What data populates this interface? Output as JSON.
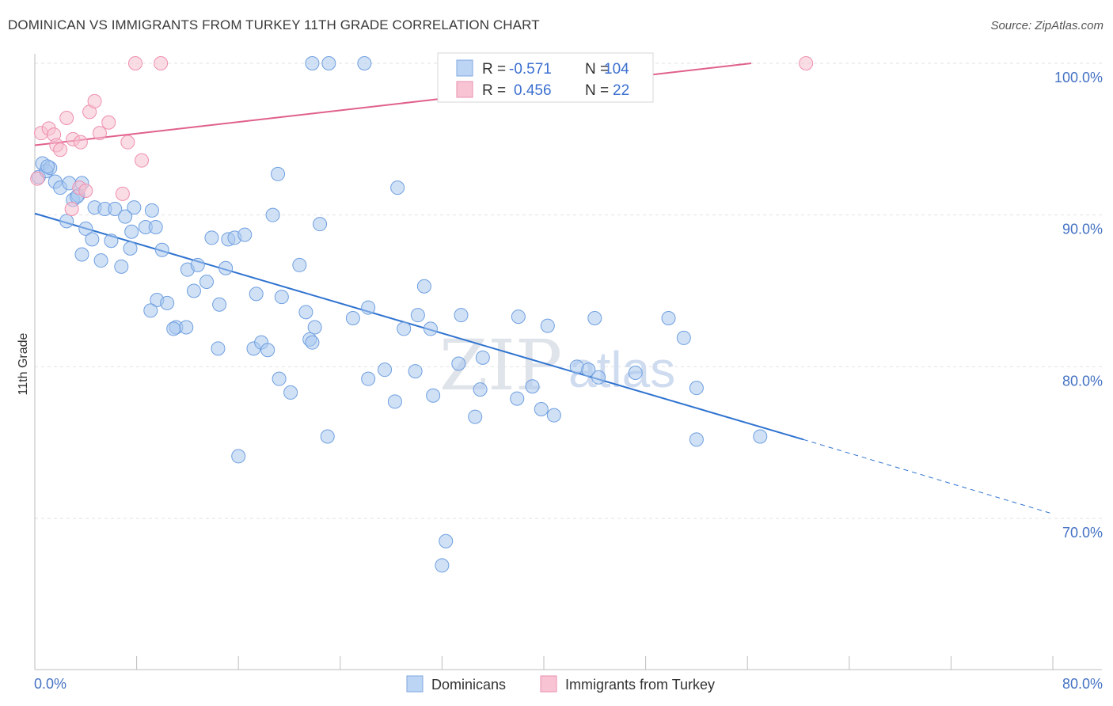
{
  "title": "DOMINICAN VS IMMIGRANTS FROM TURKEY 11TH GRADE CORRELATION CHART",
  "source": "Source: ZipAtlas.com",
  "watermark": {
    "zip": "ZIP",
    "atlas": "atlas"
  },
  "legend_box": {
    "rows": [
      {
        "r_label": "R =",
        "r_value": "-0.571",
        "n_label": "N =",
        "n_value": "104",
        "color": "#9ec3f0"
      },
      {
        "r_label": "R =",
        "r_value": "0.456",
        "n_label": "N =",
        "n_value": "22",
        "color": "#f4a9c0"
      }
    ]
  },
  "bottom_legend": [
    {
      "label": "Dominicans",
      "color": "#9ec3f0"
    },
    {
      "label": "Immigrants from Turkey",
      "color": "#f4a9c0"
    }
  ],
  "chart_data": {
    "type": "scatter",
    "title": "DOMINICAN VS IMMIGRANTS FROM TURKEY 11TH GRADE CORRELATION CHART",
    "xlabel": "",
    "ylabel": "11th Grade",
    "xlim": [
      0,
      80
    ],
    "ylim": [
      60,
      100
    ],
    "x_tick_labels": [
      "0.0%",
      "80.0%"
    ],
    "y_ticks": [
      70,
      80,
      90,
      100
    ],
    "y_tick_labels": [
      "70.0%",
      "80.0%",
      "90.0%",
      "100.0%"
    ],
    "grid": true,
    "colors": {
      "dominicans": "#6f9fe0",
      "dominicans_fill": "#a9c8ef",
      "turkey": "#ef8fae",
      "turkey_fill": "#f6bfd0",
      "dom_line": "#2f73d0",
      "tur_line": "#e0608c"
    },
    "series": [
      {
        "name": "Dominicans",
        "points": [
          [
            0.3,
            92.5
          ],
          [
            0.6,
            93.4
          ],
          [
            0.9,
            92.9
          ],
          [
            1.2,
            93.1
          ],
          [
            1.6,
            92.2
          ],
          [
            2.0,
            91.8
          ],
          [
            2.7,
            92.1
          ],
          [
            3.0,
            91.0
          ],
          [
            3.4,
            91.3
          ],
          [
            3.7,
            92.1
          ],
          [
            2.5,
            89.6
          ],
          [
            4.7,
            90.5
          ],
          [
            5.5,
            90.4
          ],
          [
            6.3,
            90.4
          ],
          [
            7.1,
            89.9
          ],
          [
            7.8,
            90.5
          ],
          [
            9.2,
            90.3
          ],
          [
            4.0,
            89.1
          ],
          [
            4.5,
            88.4
          ],
          [
            6.0,
            88.3
          ],
          [
            7.6,
            88.9
          ],
          [
            8.7,
            89.2
          ],
          [
            9.5,
            89.2
          ],
          [
            3.7,
            87.4
          ],
          [
            5.2,
            87.0
          ],
          [
            7.5,
            87.8
          ],
          [
            10.0,
            87.7
          ],
          [
            6.8,
            86.6
          ],
          [
            12.0,
            86.4
          ],
          [
            12.8,
            86.7
          ],
          [
            13.9,
            88.5
          ],
          [
            15.2,
            88.4
          ],
          [
            15.7,
            88.5
          ],
          [
            16.5,
            88.7
          ],
          [
            18.7,
            90.0
          ],
          [
            20.8,
            86.7
          ],
          [
            22.4,
            89.4
          ],
          [
            13.5,
            85.6
          ],
          [
            15.0,
            86.5
          ],
          [
            17.4,
            84.8
          ],
          [
            12.5,
            85.0
          ],
          [
            9.6,
            84.4
          ],
          [
            10.4,
            84.2
          ],
          [
            9.1,
            83.7
          ],
          [
            14.5,
            84.1
          ],
          [
            19.4,
            84.6
          ],
          [
            21.3,
            83.6
          ],
          [
            19.1,
            92.7
          ],
          [
            25.0,
            83.2
          ],
          [
            26.2,
            83.9
          ],
          [
            11.1,
            82.6
          ],
          [
            11.9,
            82.6
          ],
          [
            10.9,
            82.5
          ],
          [
            22.0,
            82.6
          ],
          [
            29.0,
            82.5
          ],
          [
            30.6,
            85.3
          ],
          [
            30.1,
            83.4
          ],
          [
            31.1,
            82.5
          ],
          [
            33.5,
            83.4
          ],
          [
            38.0,
            83.3
          ],
          [
            40.3,
            82.7
          ],
          [
            44.0,
            83.2
          ],
          [
            49.8,
            83.2
          ],
          [
            51.0,
            81.9
          ],
          [
            14.4,
            81.2
          ],
          [
            17.2,
            81.2
          ],
          [
            17.8,
            81.6
          ],
          [
            18.3,
            81.1
          ],
          [
            21.6,
            81.8
          ],
          [
            21.8,
            81.6
          ],
          [
            26.2,
            79.2
          ],
          [
            27.5,
            79.8
          ],
          [
            29.9,
            79.7
          ],
          [
            33.3,
            80.2
          ],
          [
            35.2,
            80.6
          ],
          [
            42.6,
            80.0
          ],
          [
            43.5,
            79.8
          ],
          [
            44.3,
            79.3
          ],
          [
            47.2,
            79.6
          ],
          [
            19.2,
            79.2
          ],
          [
            20.1,
            78.3
          ],
          [
            28.3,
            77.7
          ],
          [
            31.3,
            78.1
          ],
          [
            35.0,
            78.5
          ],
          [
            37.9,
            77.9
          ],
          [
            39.8,
            77.2
          ],
          [
            40.8,
            76.8
          ],
          [
            39.1,
            78.7
          ],
          [
            34.6,
            76.7
          ],
          [
            52.0,
            78.6
          ],
          [
            23.0,
            75.4
          ],
          [
            16.0,
            74.1
          ],
          [
            52.0,
            75.2
          ],
          [
            57.0,
            75.4
          ],
          [
            28.5,
            91.8
          ],
          [
            40.5,
            100
          ],
          [
            32.3,
            68.5
          ],
          [
            32.0,
            66.9
          ],
          [
            21.8,
            100
          ],
          [
            23.1,
            100
          ],
          [
            25.9,
            100
          ],
          [
            40.3,
            100
          ],
          [
            1.0,
            93.2
          ],
          [
            3.3,
            91.2
          ]
        ]
      },
      {
        "name": "Immigrants from Turkey",
        "points": [
          [
            0.2,
            92.4
          ],
          [
            0.5,
            95.4
          ],
          [
            1.1,
            95.7
          ],
          [
            1.5,
            95.3
          ],
          [
            1.7,
            94.6
          ],
          [
            2.0,
            94.3
          ],
          [
            3.0,
            95.0
          ],
          [
            3.6,
            94.8
          ],
          [
            4.3,
            96.8
          ],
          [
            4.7,
            97.5
          ],
          [
            5.1,
            95.4
          ],
          [
            5.8,
            96.1
          ],
          [
            2.5,
            96.4
          ],
          [
            7.3,
            94.8
          ],
          [
            8.4,
            93.6
          ],
          [
            6.9,
            91.4
          ],
          [
            3.5,
            91.8
          ],
          [
            4.0,
            91.6
          ],
          [
            2.9,
            90.4
          ],
          [
            7.9,
            100
          ],
          [
            9.9,
            100
          ],
          [
            60.6,
            100
          ]
        ]
      }
    ],
    "trendlines": [
      {
        "series": "Dominicans",
        "x1": 0,
        "y1": 90.1,
        "x2": 60.4,
        "y2": 75.2,
        "dash_to_x": 80,
        "dash_to_y": 70.3
      },
      {
        "series": "Immigrants from Turkey",
        "x1": 0,
        "y1": 94.6,
        "x2": 56.3,
        "y2": 100
      }
    ]
  }
}
